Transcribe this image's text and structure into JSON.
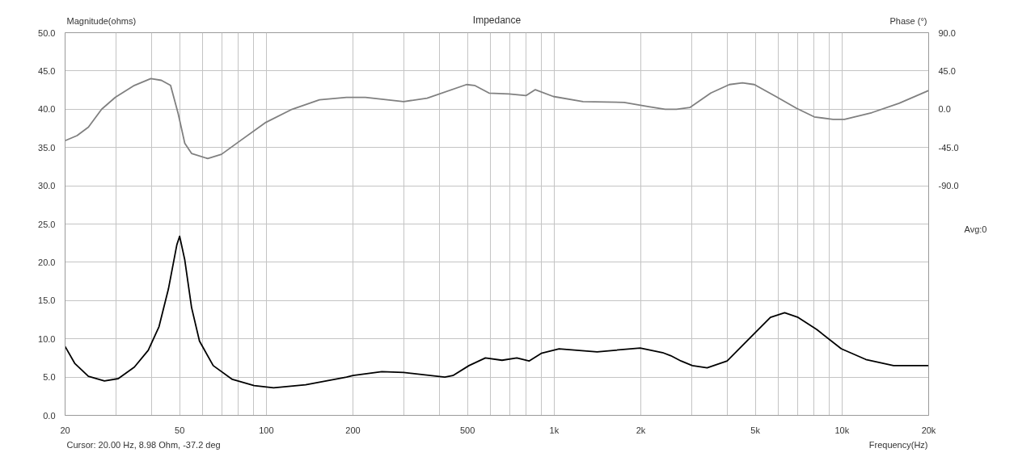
{
  "chart_data": {
    "type": "line",
    "title": "Impedance",
    "xlabel": "Frequency(Hz)",
    "ylabel": "Magnitude(ohms)",
    "y2label": "Phase (°)",
    "annotations": [
      "Cursor: 20.00 Hz, 8.98 Ohm, -37.2 deg",
      "Avg:0"
    ],
    "log": "x",
    "grid": true,
    "xlim": [
      20,
      20000
    ],
    "xticks": [
      20,
      {
        "value": 30,
        "label": null
      },
      {
        "value": 40,
        "label": null
      },
      50,
      {
        "value": 60,
        "label": null
      },
      {
        "value": 70,
        "label": null
      },
      {
        "value": 80,
        "label": null
      },
      {
        "value": 90,
        "label": null
      },
      100,
      200,
      {
        "value": 300,
        "label": null
      },
      {
        "value": 400,
        "label": null
      },
      500,
      {
        "value": 600,
        "label": null
      },
      {
        "value": 700,
        "label": null
      },
      {
        "value": 800,
        "label": null
      },
      {
        "value": 900,
        "label": null
      },
      {
        "value": 1000,
        "label": "1k"
      },
      {
        "value": 2000,
        "label": "2k"
      },
      {
        "value": 3000,
        "label": null
      },
      {
        "value": 4000,
        "label": null
      },
      {
        "value": 5000,
        "label": "5k"
      },
      {
        "value": 6000,
        "label": null
      },
      {
        "value": 7000,
        "label": null
      },
      {
        "value": 8000,
        "label": null
      },
      {
        "value": 9000,
        "label": null
      },
      {
        "value": 10000,
        "label": "10k"
      },
      {
        "value": 20000,
        "label": "20k"
      }
    ],
    "ylim": [
      0,
      50
    ],
    "yticks": [
      {
        "value": 0,
        "label": "0.0"
      },
      {
        "value": 5,
        "label": "5.0"
      },
      {
        "value": 10,
        "label": "10.0"
      },
      {
        "value": 15,
        "label": "15.0"
      },
      {
        "value": 20,
        "label": "20.0"
      },
      {
        "value": 25,
        "label": "25.0"
      },
      {
        "value": 30,
        "label": "30.0"
      },
      {
        "value": 35,
        "label": "35.0"
      },
      {
        "value": 40,
        "label": "40.0"
      },
      {
        "value": 45,
        "label": "45.0"
      },
      {
        "value": 50,
        "label": "50.0"
      }
    ],
    "y2lim": [
      -360,
      90
    ],
    "y2ticks": [
      {
        "value": 90,
        "label": "90.0"
      },
      {
        "value": 45,
        "label": "45.0"
      },
      {
        "value": 0,
        "label": "0.0"
      },
      {
        "value": -45,
        "label": "-45.0"
      },
      {
        "value": -90,
        "label": "-90.0"
      }
    ],
    "series": [
      {
        "color": "#000000",
        "x": [
          20,
          21.6,
          24.1,
          27.4,
          30.6,
          34.8,
          38.9,
          42.4,
          45.7,
          48.9,
          50,
          52.1,
          55,
          58.6,
          65.4,
          76.2,
          90.7,
          106,
          137,
          190,
          200,
          252,
          300,
          417,
          445,
          506,
          577,
          659,
          742,
          818,
          902,
          1040,
          1410,
          1990,
          2380,
          2540,
          2760,
          3020,
          3400,
          3990,
          4960,
          5640,
          6320,
          7040,
          8180,
          9940,
          12100,
          15100,
          20000
        ],
        "values": [
          9.0,
          6.8,
          5.1,
          4.5,
          4.8,
          6.3,
          8.5,
          11.6,
          16.5,
          22.3,
          23.4,
          20.3,
          14.1,
          9.7,
          6.5,
          4.7,
          3.9,
          3.6,
          4.0,
          5.0,
          5.2,
          5.7,
          5.6,
          5.0,
          5.2,
          6.5,
          7.5,
          7.2,
          7.5,
          7.1,
          8.1,
          8.7,
          8.3,
          8.8,
          8.2,
          7.8,
          7.1,
          6.5,
          6.2,
          7.1,
          10.7,
          12.8,
          13.4,
          12.8,
          11.2,
          8.7,
          7.3,
          6.5,
          6.5
        ]
      },
      {
        "color": "#808080",
        "axis": "y2",
        "x": [
          20,
          22,
          24.1,
          26.8,
          29.9,
          34.8,
          39.7,
          43.2,
          46.5,
          49.4,
          52.1,
          55,
          62.6,
          69.9,
          79.7,
          99,
          123,
          153,
          190,
          221,
          300,
          362,
          496,
          529,
          594,
          697,
          798,
          860,
          993,
          1260,
          1750,
          2130,
          2430,
          2660,
          2960,
          3500,
          4060,
          4510,
          4960,
          5890,
          6960,
          8010,
          9300,
          10200,
          12700,
          15800,
          20000
        ],
        "values": [
          -37,
          -31,
          -21,
          0,
          14,
          28,
          36,
          34,
          28,
          -5,
          -40,
          -52,
          -58,
          -53,
          -39,
          -16,
          0,
          11,
          14,
          14,
          9,
          13,
          29,
          28,
          19,
          18,
          16,
          23,
          15,
          9,
          8,
          3,
          0,
          0,
          2,
          19,
          29,
          31,
          29,
          15,
          1,
          -9,
          -12,
          -12,
          -4,
          7,
          22
        ]
      }
    ]
  }
}
